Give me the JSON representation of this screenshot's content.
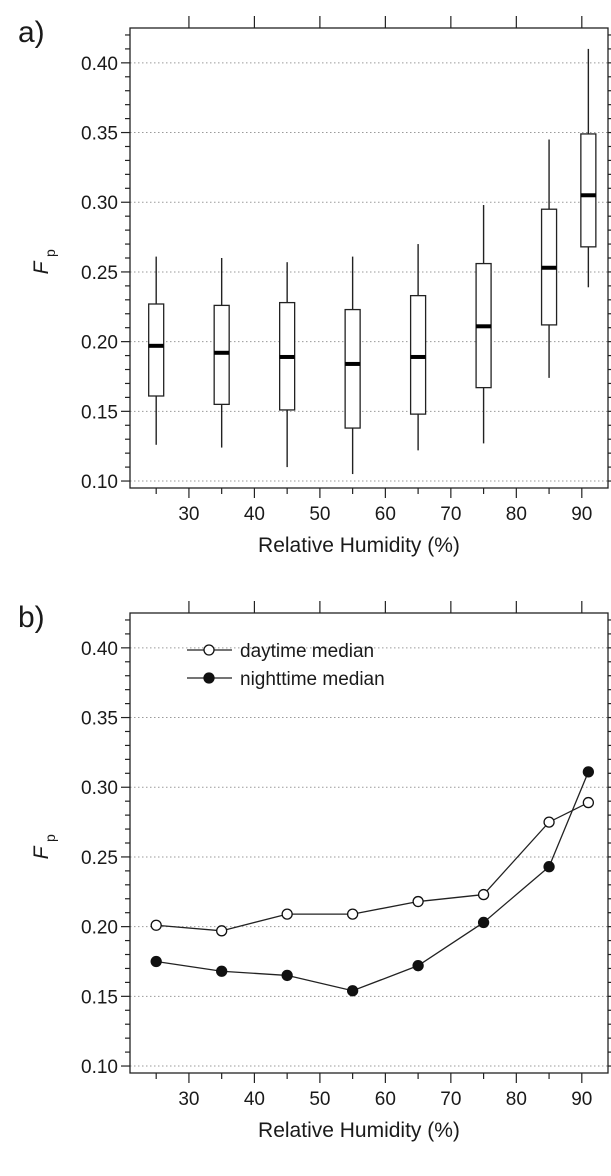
{
  "chart_data": [
    {
      "type": "box",
      "panel_label": "a)",
      "xlabel": "Relative Humidity (%)",
      "ylabel_main": "F",
      "ylabel_sub": "p",
      "xlim": [
        21,
        94
      ],
      "ylim": [
        0.095,
        0.425
      ],
      "xticks": [
        30,
        40,
        50,
        60,
        70,
        80,
        90
      ],
      "yticks": [
        0.1,
        0.15,
        0.2,
        0.25,
        0.3,
        0.35,
        0.4
      ],
      "ytick_labels": [
        "0.10",
        "0.15",
        "0.20",
        "0.25",
        "0.30",
        "0.35",
        "0.40"
      ],
      "grid": "horizontal-dotted",
      "boxes": [
        {
          "x": 25,
          "whisker_low": 0.126,
          "q1": 0.161,
          "median": 0.197,
          "q3": 0.227,
          "whisker_high": 0.261
        },
        {
          "x": 35,
          "whisker_low": 0.124,
          "q1": 0.155,
          "median": 0.192,
          "q3": 0.226,
          "whisker_high": 0.26
        },
        {
          "x": 45,
          "whisker_low": 0.11,
          "q1": 0.151,
          "median": 0.189,
          "q3": 0.228,
          "whisker_high": 0.257
        },
        {
          "x": 55,
          "whisker_low": 0.105,
          "q1": 0.138,
          "median": 0.184,
          "q3": 0.223,
          "whisker_high": 0.261
        },
        {
          "x": 65,
          "whisker_low": 0.122,
          "q1": 0.148,
          "median": 0.189,
          "q3": 0.233,
          "whisker_high": 0.27
        },
        {
          "x": 75,
          "whisker_low": 0.127,
          "q1": 0.167,
          "median": 0.211,
          "q3": 0.256,
          "whisker_high": 0.298
        },
        {
          "x": 85,
          "whisker_low": 0.174,
          "q1": 0.212,
          "median": 0.253,
          "q3": 0.295,
          "whisker_high": 0.345
        },
        {
          "x": 91,
          "whisker_low": 0.239,
          "q1": 0.268,
          "median": 0.305,
          "q3": 0.349,
          "whisker_high": 0.41
        }
      ]
    },
    {
      "type": "line",
      "panel_label": "b)",
      "xlabel": "Relative Humidity (%)",
      "ylabel_main": "F",
      "ylabel_sub": "p",
      "xlim": [
        21,
        94
      ],
      "ylim": [
        0.095,
        0.425
      ],
      "xticks": [
        30,
        40,
        50,
        60,
        70,
        80,
        90
      ],
      "yticks": [
        0.1,
        0.15,
        0.2,
        0.25,
        0.3,
        0.35,
        0.4
      ],
      "ytick_labels": [
        "0.10",
        "0.15",
        "0.20",
        "0.25",
        "0.30",
        "0.35",
        "0.40"
      ],
      "grid": "horizontal-dotted",
      "legend": "top-left",
      "x": [
        25,
        35,
        45,
        55,
        65,
        75,
        85,
        91
      ],
      "series": [
        {
          "name": "daytime median",
          "marker": "open-circle",
          "values": [
            0.201,
            0.197,
            0.209,
            0.209,
            0.218,
            0.223,
            0.275,
            0.289
          ]
        },
        {
          "name": "nighttime median",
          "marker": "filled-circle",
          "values": [
            0.175,
            0.168,
            0.165,
            0.154,
            0.172,
            0.203,
            0.243,
            0.311
          ]
        }
      ]
    }
  ]
}
